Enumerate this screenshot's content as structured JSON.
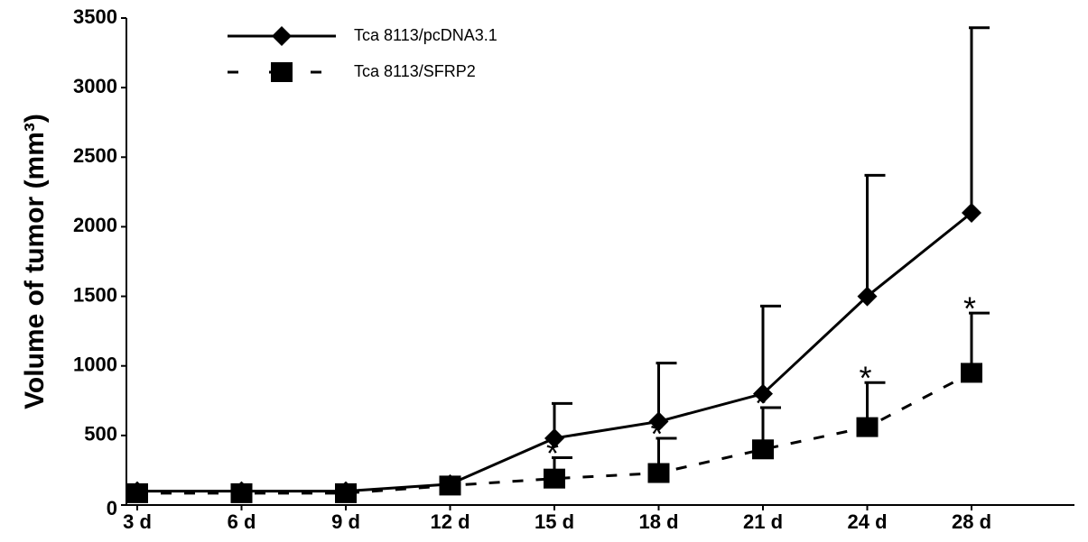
{
  "chart_data": {
    "type": "line",
    "y_label": "Volume of tumor (mm³)",
    "categories": [
      "3 d",
      "6 d",
      "9 d",
      "12 d",
      "15 d",
      "18 d",
      "21 d",
      "24 d",
      "28 d"
    ],
    "ylim": [
      0,
      3500
    ],
    "yticks": [
      0,
      500,
      1000,
      1500,
      2000,
      2500,
      3000,
      3500
    ],
    "legend": "top-left",
    "series": [
      {
        "name": "Tca 8113/pcDNA3.1",
        "color": "#000000",
        "marker": "diamond",
        "dashed": false,
        "values": [
          100,
          100,
          100,
          150,
          480,
          600,
          800,
          1500,
          2100
        ],
        "errors": [
          null,
          null,
          null,
          null,
          250,
          420,
          630,
          870,
          1330
        ]
      },
      {
        "name": "Tca 8113/SFRP2",
        "color": "#000000",
        "marker": "square",
        "dashed": true,
        "values": [
          85,
          85,
          85,
          140,
          190,
          230,
          400,
          560,
          950
        ],
        "errors": [
          null,
          null,
          null,
          null,
          150,
          250,
          300,
          320,
          430
        ],
        "significance": [
          null,
          null,
          null,
          null,
          "*",
          "*",
          "*",
          "*",
          "*"
        ]
      }
    ]
  }
}
